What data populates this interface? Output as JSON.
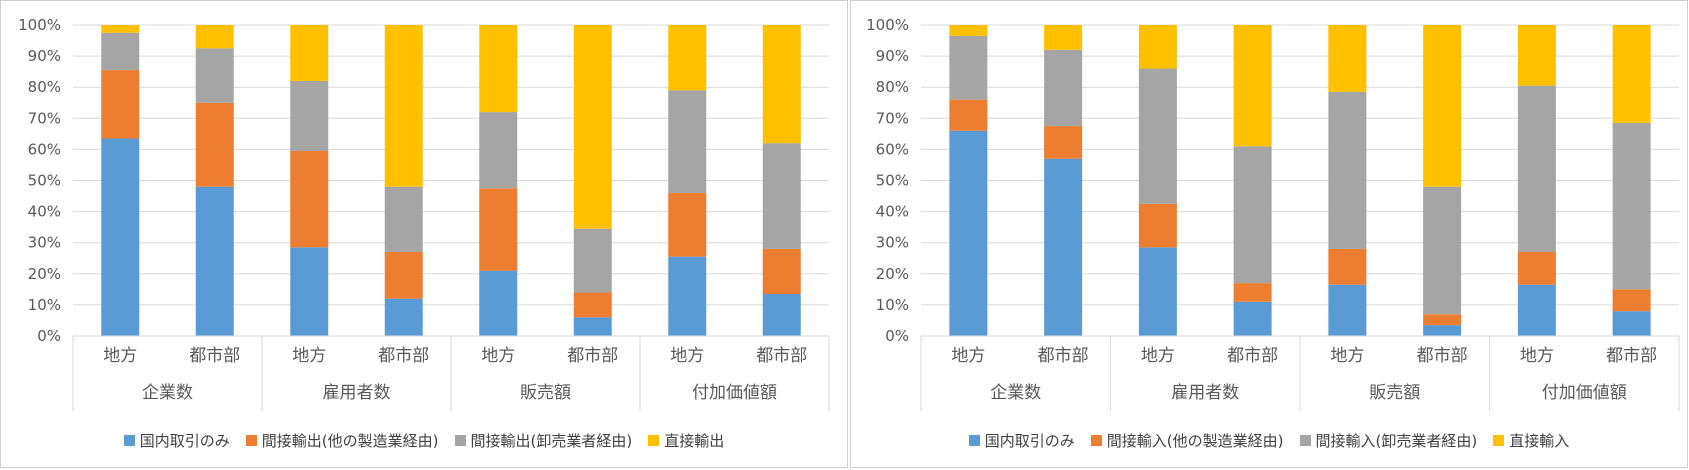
{
  "colors": {
    "domestic": "#5B9BD5",
    "indirect_mfg": "#ED7D31",
    "indirect_wholesale": "#A5A5A5",
    "direct": "#FFC000"
  },
  "chart_data": [
    {
      "type": "bar",
      "stacked": true,
      "percent": true,
      "y_ticks": [
        "0%",
        "10%",
        "20%",
        "30%",
        "40%",
        "50%",
        "60%",
        "70%",
        "80%",
        "90%",
        "100%"
      ],
      "ylim": [
        0,
        100
      ],
      "grid": true,
      "legend_position": "bottom",
      "groups": [
        "企業数",
        "雇用者数",
        "販売額",
        "付加価値額"
      ],
      "categories": [
        "地方",
        "都市部",
        "地方",
        "都市部",
        "地方",
        "都市部",
        "地方",
        "都市部"
      ],
      "series": [
        {
          "name": "国内取引のみ",
          "color_key": "domestic",
          "values": [
            63.5,
            48,
            28.5,
            12,
            21,
            6,
            25.5,
            13.5
          ]
        },
        {
          "name": "間接輸出(他の製造業経由)",
          "color_key": "indirect_mfg",
          "values": [
            22,
            27,
            31,
            15,
            26.5,
            8,
            20.5,
            14.5
          ]
        },
        {
          "name": "間接輸出(卸売業者経由)",
          "color_key": "indirect_wholesale",
          "values": [
            12,
            17.5,
            22.5,
            21,
            24.5,
            20.5,
            33,
            34
          ]
        },
        {
          "name": "直接輸出",
          "color_key": "direct",
          "values": [
            2.5,
            7.5,
            18,
            52,
            28,
            65.5,
            21,
            38
          ]
        }
      ]
    },
    {
      "type": "bar",
      "stacked": true,
      "percent": true,
      "y_ticks": [
        "0%",
        "10%",
        "20%",
        "30%",
        "40%",
        "50%",
        "60%",
        "70%",
        "80%",
        "90%",
        "100%"
      ],
      "ylim": [
        0,
        100
      ],
      "grid": true,
      "legend_position": "bottom",
      "groups": [
        "企業数",
        "雇用者数",
        "販売額",
        "付加価値額"
      ],
      "categories": [
        "地方",
        "都市部",
        "地方",
        "都市部",
        "地方",
        "都市部",
        "地方",
        "都市部"
      ],
      "series": [
        {
          "name": "国内取引のみ",
          "color_key": "domestic",
          "values": [
            66,
            57,
            28.5,
            11,
            16.5,
            3.5,
            16.5,
            8
          ]
        },
        {
          "name": "間接輸入(他の製造業経由)",
          "color_key": "indirect_mfg",
          "values": [
            10,
            10.5,
            14,
            6,
            11.5,
            3.5,
            10.5,
            7
          ]
        },
        {
          "name": "間接輸入(卸売業者経由)",
          "color_key": "indirect_wholesale",
          "values": [
            20.5,
            24.5,
            43.5,
            44,
            50.5,
            41,
            53.5,
            53.5
          ]
        },
        {
          "name": "直接輸入",
          "color_key": "direct",
          "values": [
            3.5,
            8,
            14,
            39,
            21.5,
            52,
            19.5,
            31.5
          ]
        }
      ]
    }
  ]
}
